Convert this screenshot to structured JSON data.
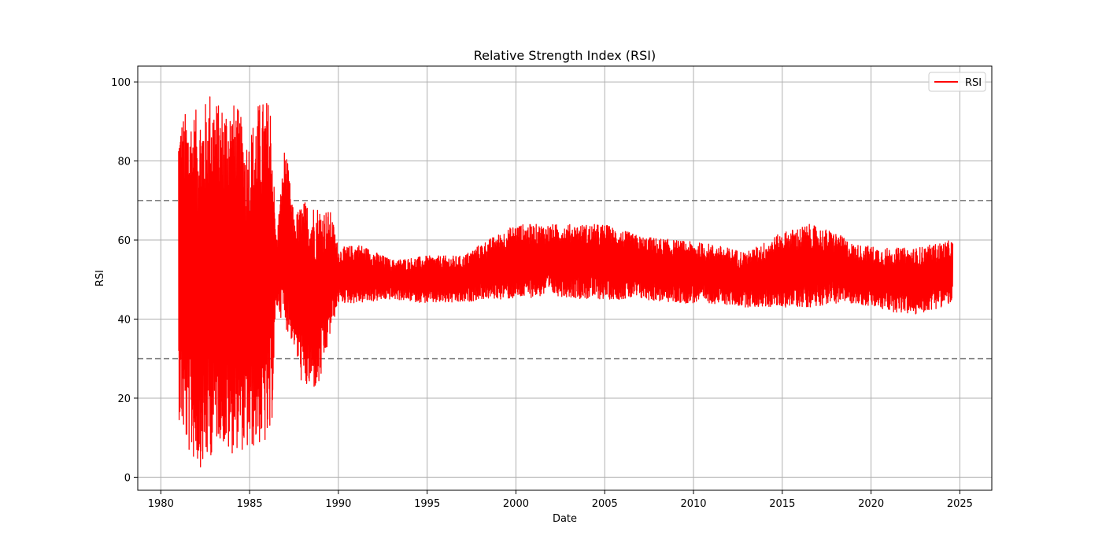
{
  "chart_data": {
    "type": "line",
    "title": "Relative Strength Index (RSI)",
    "xlabel": "Date",
    "ylabel": "RSI",
    "xlim": [
      1978.7,
      2026.8
    ],
    "ylim": [
      -3.3,
      104
    ],
    "x_ticks": [
      1980,
      1985,
      1990,
      1995,
      2000,
      2005,
      2010,
      2015,
      2020,
      2025
    ],
    "x_tick_labels": [
      "1980",
      "1985",
      "1990",
      "1995",
      "2000",
      "2005",
      "2010",
      "2015",
      "2020",
      "2025"
    ],
    "y_ticks": [
      0,
      20,
      40,
      60,
      80,
      100
    ],
    "y_tick_labels": [
      "0",
      "20",
      "40",
      "60",
      "80",
      "100"
    ],
    "grid": true,
    "legend": {
      "position": "top-right",
      "entries": [
        {
          "label": "RSI",
          "color": "#ff0000"
        }
      ]
    },
    "reference_lines": [
      {
        "y": 70,
        "style": "dashed",
        "color": "#808080"
      },
      {
        "y": 30,
        "style": "dashed",
        "color": "#808080"
      }
    ],
    "x_range_data": [
      1981.0,
      2024.6
    ],
    "series": [
      {
        "name": "RSI",
        "color": "#ff0000",
        "envelope": [
          {
            "x": 1981.0,
            "low": 15,
            "high": 91
          },
          {
            "x": 1981.5,
            "low": 6,
            "high": 93
          },
          {
            "x": 1982.0,
            "low": 3,
            "high": 93
          },
          {
            "x": 1982.5,
            "low": 2,
            "high": 95
          },
          {
            "x": 1982.8,
            "low": 5,
            "high": 99
          },
          {
            "x": 1983.3,
            "low": 10,
            "high": 94
          },
          {
            "x": 1983.8,
            "low": 5,
            "high": 96
          },
          {
            "x": 1984.3,
            "low": 7,
            "high": 94
          },
          {
            "x": 1984.9,
            "low": 6,
            "high": 86
          },
          {
            "x": 1985.5,
            "low": 8,
            "high": 95
          },
          {
            "x": 1986.2,
            "low": 7,
            "high": 96
          },
          {
            "x": 1986.5,
            "low": 43,
            "high": 60
          },
          {
            "x": 1987.0,
            "low": 38,
            "high": 85
          },
          {
            "x": 1987.5,
            "low": 33,
            "high": 66
          },
          {
            "x": 1988.0,
            "low": 22,
            "high": 70
          },
          {
            "x": 1988.9,
            "low": 22,
            "high": 69
          },
          {
            "x": 1989.6,
            "low": 37,
            "high": 67
          },
          {
            "x": 1990.0,
            "low": 44,
            "high": 58
          },
          {
            "x": 1991.2,
            "low": 44,
            "high": 59
          },
          {
            "x": 1993.0,
            "low": 45,
            "high": 55
          },
          {
            "x": 1995.0,
            "low": 44,
            "high": 56
          },
          {
            "x": 1997.0,
            "low": 44,
            "high": 56
          },
          {
            "x": 1998.0,
            "low": 45,
            "high": 59
          },
          {
            "x": 2000.0,
            "low": 45,
            "high": 64
          },
          {
            "x": 2002.0,
            "low": 46,
            "high": 64
          },
          {
            "x": 2004.0,
            "low": 45,
            "high": 64
          },
          {
            "x": 2005.0,
            "low": 45,
            "high": 64
          },
          {
            "x": 2007.0,
            "low": 45,
            "high": 61
          },
          {
            "x": 2009.0,
            "low": 44,
            "high": 60
          },
          {
            "x": 2011.0,
            "low": 44,
            "high": 59
          },
          {
            "x": 2013.0,
            "low": 43,
            "high": 57
          },
          {
            "x": 2015.0,
            "low": 43,
            "high": 62
          },
          {
            "x": 2016.5,
            "low": 43,
            "high": 64
          },
          {
            "x": 2018.0,
            "low": 44,
            "high": 62
          },
          {
            "x": 2019.0,
            "low": 44,
            "high": 59
          },
          {
            "x": 2021.0,
            "low": 42,
            "high": 58
          },
          {
            "x": 2022.5,
            "low": 41,
            "high": 58
          },
          {
            "x": 2024.6,
            "low": 44,
            "high": 60
          }
        ]
      }
    ]
  }
}
